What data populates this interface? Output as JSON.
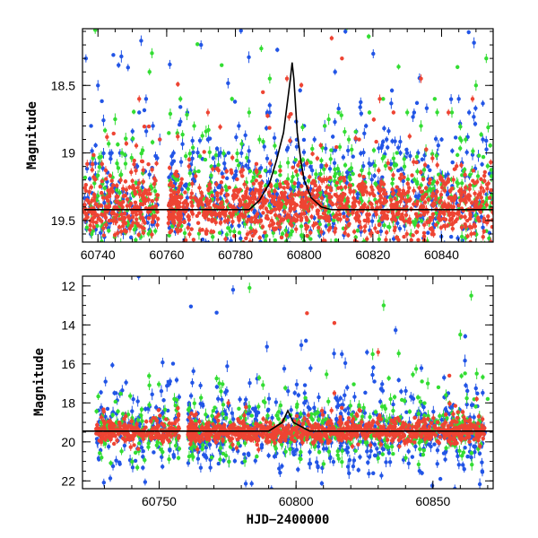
{
  "chart_data": [
    {
      "id": "top-panel",
      "type": "scatter",
      "title": "",
      "xlabel": "",
      "ylabel": "Magnitude",
      "xlim": [
        60735.5,
        60855.0
      ],
      "ylim": [
        19.66,
        18.08
      ],
      "y_inverted": true,
      "grid": false,
      "x_ticks": [
        60740,
        60760,
        60780,
        60800,
        60820,
        60840
      ],
      "y_ticks": [
        18.5,
        19,
        19.5
      ],
      "x_minor_step": 5,
      "y_minor_step": 0.1,
      "series": [
        {
          "color": "#2255e6",
          "dense": {
            "count": 650,
            "x_range": [
              60736,
              60855
            ],
            "base_mag": 19.35,
            "spread": 0.45
          },
          "points": [
            [
              60736.5,
              18.3
            ],
            [
              60738,
              18.8
            ],
            [
              60740,
              18.5
            ],
            [
              60744,
              19.0
            ],
            [
              60746,
              18.35
            ],
            [
              60750,
              18.9
            ],
            [
              60752,
              18.7
            ],
            [
              60754,
              18.6
            ],
            [
              60756,
              18.8
            ],
            [
              60758,
              18.9
            ],
            [
              60762,
              19.0
            ],
            [
              60766,
              18.7
            ],
            [
              60770,
              18.2
            ],
            [
              60772,
              18.9
            ],
            [
              60774,
              19.1
            ],
            [
              60778,
              19.0
            ],
            [
              60781,
              18.8
            ],
            [
              60790,
              18.7
            ],
            [
              60792,
              19.0
            ],
            [
              60800,
              18.8
            ],
            [
              60803,
              18.9
            ],
            [
              60806,
              18.8
            ],
            [
              60809,
              18.4
            ],
            [
              60812,
              18.1
            ],
            [
              60815,
              18.9
            ],
            [
              60818,
              18.8
            ],
            [
              60824,
              18.9
            ],
            [
              60828,
              19.0
            ],
            [
              60832,
              18.7
            ],
            [
              60836,
              19.1
            ],
            [
              60840,
              18.9
            ],
            [
              60845,
              18.6
            ],
            [
              60848,
              18.7
            ],
            [
              60852,
              18.9
            ]
          ]
        },
        {
          "color": "#33dd33",
          "dense": {
            "count": 550,
            "x_range": [
              60736,
              60855
            ],
            "base_mag": 19.35,
            "spread": 0.4
          },
          "points": [
            [
              60745,
              18.75
            ],
            [
              60747,
              19.0
            ],
            [
              60755,
              18.4
            ],
            [
              60764,
              18.6
            ],
            [
              60768,
              18.8
            ],
            [
              60773,
              19.1
            ],
            [
              60776,
              18.35
            ],
            [
              60779,
              18.6
            ],
            [
              60784,
              18.7
            ],
            [
              60787,
              18.9
            ],
            [
              60790,
              18.45
            ],
            [
              60793,
              19.1
            ],
            [
              60806,
              18.8
            ],
            [
              60810,
              18.7
            ],
            [
              60813,
              18.9
            ],
            [
              60819,
              18.7
            ],
            [
              60823,
              18.6
            ],
            [
              60827,
              19.0
            ],
            [
              60830,
              18.7
            ],
            [
              60834,
              18.8
            ],
            [
              60838,
              18.6
            ],
            [
              60843,
              18.7
            ],
            [
              60847,
              18.9
            ],
            [
              60850,
              18.5
            ],
            [
              60853,
              18.3
            ]
          ]
        },
        {
          "color": "#ee4433",
          "dense": {
            "count": 1300,
            "x_range": [
              60736,
              60855
            ],
            "base_mag": 19.4,
            "spread": 0.22
          },
          "points": [
            [
              60752,
              18.6
            ],
            [
              60758,
              18.9
            ],
            [
              60772,
              18.7
            ],
            [
              60788,
              18.55
            ],
            [
              60795,
              18.45
            ],
            [
              60808,
              18.15
            ],
            [
              60811,
              18.3
            ],
            [
              60816,
              18.9
            ],
            [
              60822,
              18.6
            ],
            [
              60826,
              18.7
            ],
            [
              60834,
              18.45
            ],
            [
              60842,
              18.7
            ],
            [
              60849,
              18.6
            ]
          ]
        }
      ],
      "model_curve": {
        "color": "#000000",
        "x": [
          60736,
          60784,
          60787,
          60790,
          60792,
          60794,
          60795,
          60796,
          60796.5,
          60797,
          60797.5,
          60798,
          60799,
          60800,
          60802,
          60805,
          60808,
          60855
        ],
        "y": [
          19.42,
          19.42,
          19.35,
          19.22,
          19.05,
          18.85,
          18.65,
          18.45,
          18.33,
          18.45,
          18.65,
          18.85,
          19.05,
          19.2,
          19.33,
          19.4,
          19.42,
          19.42
        ]
      }
    },
    {
      "id": "bottom-panel",
      "type": "scatter",
      "title": "",
      "xlabel": "HJD−2400000",
      "ylabel": "Magnitude",
      "xlim": [
        60722,
        60872
      ],
      "ylim": [
        22.4,
        11.5
      ],
      "y_inverted": true,
      "grid": false,
      "x_ticks": [
        60750,
        60800,
        60850
      ],
      "y_ticks": [
        12,
        14,
        16,
        18,
        20,
        22
      ],
      "x_minor_step": 10,
      "y_minor_step": 0.5,
      "series": [
        {
          "color": "#2255e6",
          "dense": {
            "count": 700,
            "x_range": [
              60727,
              60869
            ],
            "base_mag": 19.5,
            "spread": 1.9
          },
          "points": [
            [
              60777,
              12.2
            ],
            [
              60803,
              18.0
            ],
            [
              60815,
              18.2
            ],
            [
              60826,
              19.5
            ],
            [
              60835,
              18.8
            ],
            [
              60846,
              21.6
            ],
            [
              60858,
              22.4
            ],
            [
              60864,
              20.8
            ],
            [
              60868,
              21.5
            ],
            [
              60808,
              21.3
            ],
            [
              60790,
              20.7
            ]
          ]
        },
        {
          "color": "#33dd33",
          "dense": {
            "count": 500,
            "x_range": [
              60727,
              60869
            ],
            "base_mag": 19.4,
            "spread": 1.3
          },
          "points": [
            [
              60783,
              12.1
            ],
            [
              60772,
              17.0
            ],
            [
              60832,
              13.0
            ],
            [
              60828,
              15.5
            ],
            [
              60836,
              17.7
            ],
            [
              60846,
              16.9
            ],
            [
              60852,
              17.2
            ],
            [
              60856,
              18.0
            ],
            [
              60860,
              14.5
            ],
            [
              60864,
              12.5
            ],
            [
              60866,
              16.5
            ],
            [
              60870,
              17.8
            ]
          ]
        },
        {
          "color": "#ee4433",
          "dense": {
            "count": 1100,
            "x_range": [
              60727,
              60869
            ],
            "base_mag": 19.5,
            "spread": 0.5
          },
          "points": [
            [
              60804,
              13.4
            ],
            [
              60814,
              13.9
            ],
            [
              60830,
              15.4
            ],
            [
              60814,
              17.5
            ],
            [
              60856,
              16.6
            ],
            [
              60866,
              17.8
            ]
          ]
        }
      ],
      "model_curve": {
        "color": "#000000",
        "x": [
          60722,
          60790,
          60795,
          60797,
          60799,
          60805,
          60872
        ],
        "y": [
          19.45,
          19.45,
          19.0,
          18.4,
          19.0,
          19.45,
          19.45
        ]
      }
    }
  ]
}
